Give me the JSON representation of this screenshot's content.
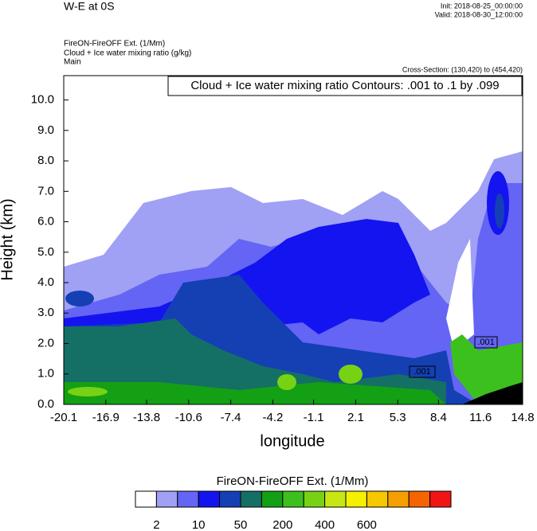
{
  "chart_data": {
    "type": "contour",
    "title": "W-E at 0S",
    "init": "Init: 2018-08-25_00:00:00",
    "valid": "Valid: 2018-08-30_12:00:00",
    "field": "FireON-FireOFF Ext.   (1/Mm)",
    "contour_field": "Cloud + Ice water mixing ratio   (g/kg)",
    "domain": "Main",
    "cross_section": "Cross-Section: (130,420) to (454,420)",
    "contour_info": "Cloud + Ice water mixing ratio Contours: .001 to .1 by .099",
    "contour_labels": [
      ".001",
      ".001"
    ],
    "x_label": "longitude",
    "y_label": "Height (km)",
    "xlim": [
      -20.1,
      14.8
    ],
    "xticks": [
      -20.1,
      -16.9,
      -13.8,
      -10.6,
      -7.4,
      -4.2,
      -1.1,
      2.1,
      5.3,
      8.4,
      11.6,
      14.8
    ],
    "ylim": [
      0,
      10.8
    ],
    "yticks": [
      {
        "value": 0,
        "label": "0.0"
      },
      {
        "value": 1,
        "label": "1.0"
      },
      {
        "value": 2,
        "label": "2.0"
      },
      {
        "value": 3,
        "label": "3.0"
      },
      {
        "value": 4,
        "label": "4.0"
      },
      {
        "value": 5,
        "label": "5.0"
      },
      {
        "value": 6,
        "label": "6.0"
      },
      {
        "value": 7,
        "label": "7.0"
      },
      {
        "value": 8,
        "label": "8.0"
      },
      {
        "value": 9,
        "label": "9.0"
      },
      {
        "value": 10,
        "label": "10.0"
      }
    ],
    "colorbar_title": "FireON-FireOFF Ext.  (1/Mm)",
    "colorbar_colors": [
      "#ffffff",
      "#a0a0f5",
      "#6464f5",
      "#1414f0",
      "#1440b4",
      "#147064",
      "#14a014",
      "#3cc01e",
      "#78d214",
      "#c8e614",
      "#f5f000",
      "#f5c800",
      "#f5a000",
      "#f56400",
      "#f01414"
    ],
    "colorbar_levels": [
      2,
      10,
      50,
      200,
      400,
      600
    ]
  }
}
